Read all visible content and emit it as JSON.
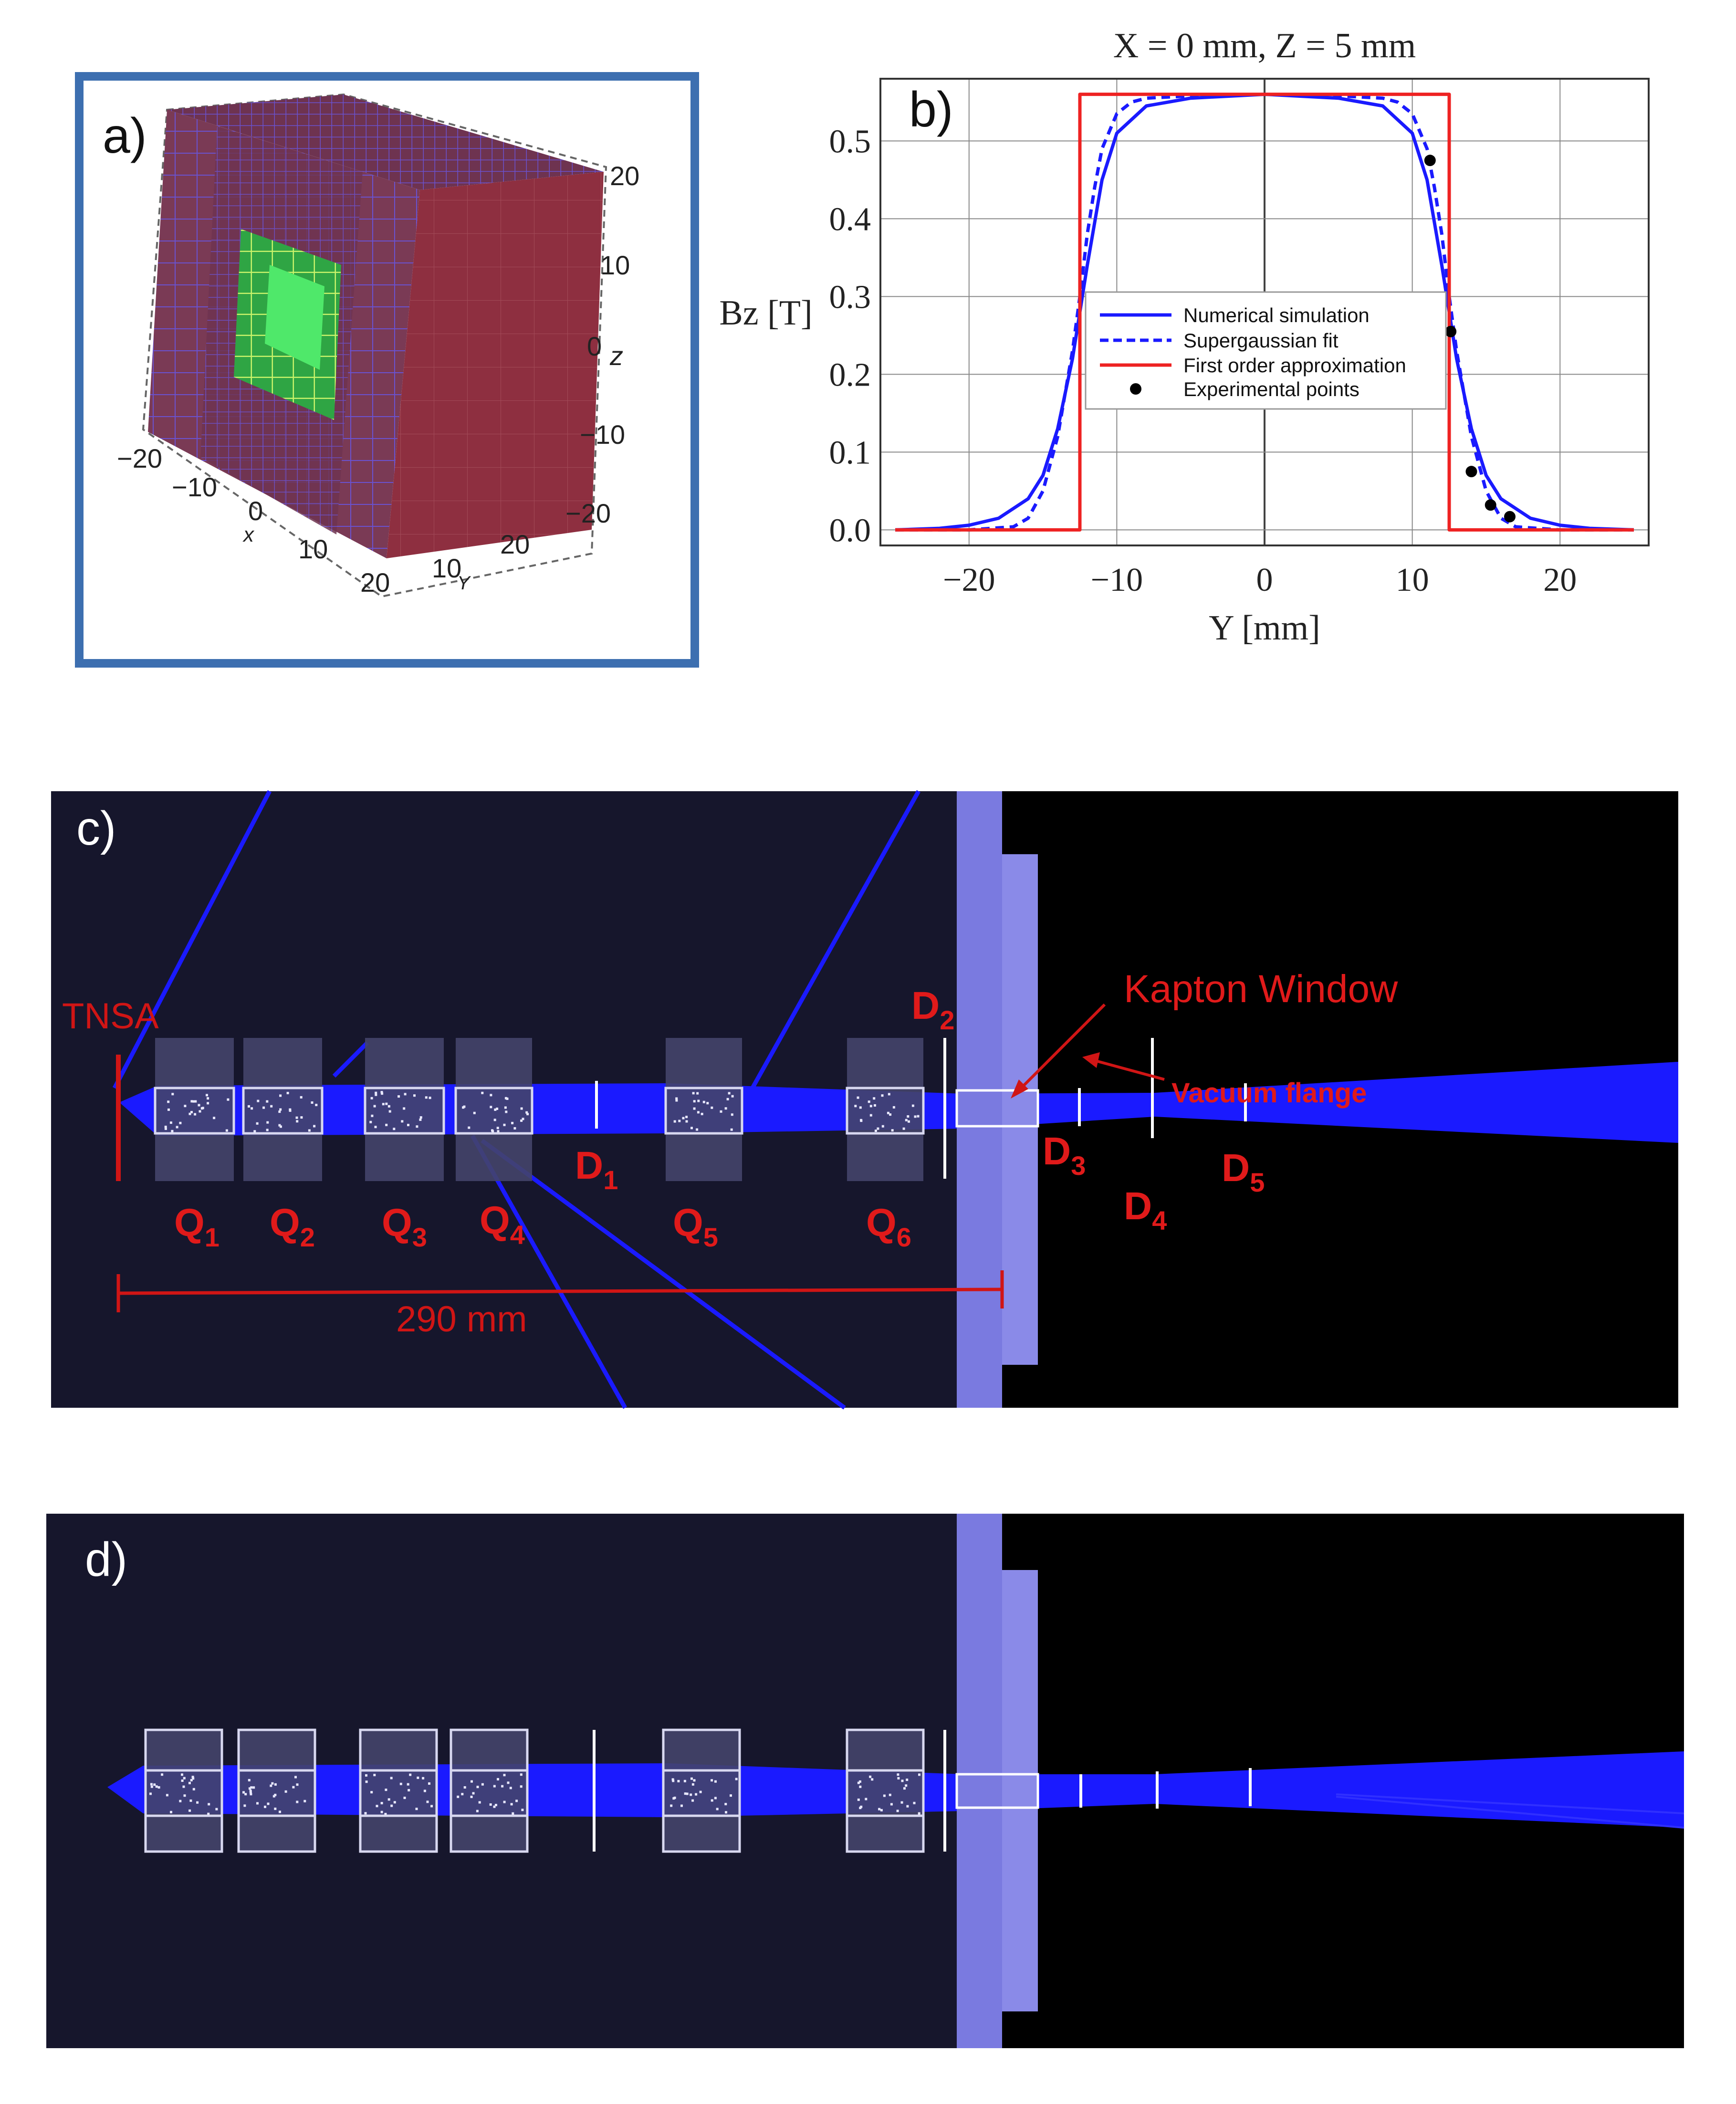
{
  "panel_a": {
    "label": "a)",
    "axes": {
      "z_ticks": [
        "20",
        "10",
        "0",
        "−10",
        "−20"
      ],
      "z_label": "z",
      "x_ticks": [
        "−20",
        "−10",
        "0",
        "10",
        "20"
      ],
      "x_label": "x",
      "y_ticks": [
        "10",
        "20"
      ],
      "y_label": "Y"
    },
    "colors": {
      "frame": "#3d6fb0",
      "magnet": "#7a3a52",
      "grid": "#6a4fc4",
      "core": "#33dd55"
    }
  },
  "panel_b": {
    "label": "b)",
    "chart_data": {
      "type": "line",
      "title": "X = 0 mm, Z = 5 mm",
      "xlabel": "Y [mm]",
      "ylabel": "Bz [T]",
      "xlim": [
        -26,
        26
      ],
      "ylim": [
        -0.02,
        0.58
      ],
      "x_ticks": [
        -20,
        -10,
        0,
        10,
        20
      ],
      "x_tick_labels": [
        "−20",
        "−10",
        "0",
        "10",
        "20"
      ],
      "y_ticks": [
        0.0,
        0.1,
        0.2,
        0.3,
        0.4,
        0.5
      ],
      "y_tick_labels": [
        "0.0",
        "0.1",
        "0.2",
        "0.3",
        "0.4",
        "0.5"
      ],
      "grid": true,
      "legend_position": "center",
      "series": [
        {
          "name": "Numerical simulation",
          "style": "solid",
          "color": "#1a1aff",
          "x": [
            -25,
            -22,
            -20,
            -18,
            -16,
            -15,
            -14,
            -13,
            -12.5,
            -12,
            -11,
            -10,
            -8,
            -5,
            0,
            5,
            8,
            10,
            11,
            12,
            12.5,
            13,
            14,
            15,
            16,
            18,
            20,
            22,
            25
          ],
          "y": [
            0.0,
            0.002,
            0.006,
            0.015,
            0.04,
            0.07,
            0.13,
            0.22,
            0.28,
            0.34,
            0.45,
            0.51,
            0.545,
            0.555,
            0.56,
            0.555,
            0.545,
            0.51,
            0.45,
            0.34,
            0.28,
            0.22,
            0.13,
            0.07,
            0.04,
            0.015,
            0.006,
            0.002,
            0.0
          ]
        },
        {
          "name": "Supergaussian fit",
          "style": "dashed",
          "color": "#1a1aff",
          "x": [
            -25,
            -20,
            -17,
            -16,
            -15,
            -14,
            -13,
            -12.5,
            -12,
            -11.5,
            -11,
            -10,
            -9,
            -8,
            -5,
            0,
            5,
            8,
            9,
            10,
            11,
            11.5,
            12,
            12.5,
            13,
            14,
            15,
            16,
            17,
            20,
            25
          ],
          "y": [
            0.0,
            0.0,
            0.004,
            0.015,
            0.05,
            0.12,
            0.23,
            0.3,
            0.38,
            0.44,
            0.49,
            0.535,
            0.55,
            0.555,
            0.558,
            0.56,
            0.558,
            0.555,
            0.55,
            0.535,
            0.49,
            0.44,
            0.38,
            0.3,
            0.23,
            0.12,
            0.05,
            0.015,
            0.004,
            0.0,
            0.0
          ]
        },
        {
          "name": "First order approximation",
          "style": "solid",
          "color": "#ee2222",
          "x": [
            -25,
            -12.5,
            -12.5,
            12.5,
            12.5,
            25
          ],
          "y": [
            0.0,
            0.0,
            0.56,
            0.56,
            0.0,
            0.0
          ]
        },
        {
          "name": "Experimental points",
          "style": "markers",
          "color": "#000000",
          "x": [
            11.2,
            12.6,
            14.0,
            15.3,
            16.6
          ],
          "y": [
            0.475,
            0.255,
            0.075,
            0.032,
            0.017
          ]
        }
      ]
    }
  },
  "panel_c": {
    "label": "c)",
    "labels": {
      "tnsa": "TNSA",
      "kapton": "Kapton Window",
      "vacuum": "Vacuum flange",
      "distance": "290 mm"
    },
    "quads": [
      {
        "letter": "Q",
        "sub": "1"
      },
      {
        "letter": "Q",
        "sub": "2"
      },
      {
        "letter": "Q",
        "sub": "3"
      },
      {
        "letter": "Q",
        "sub": "4"
      },
      {
        "letter": "Q",
        "sub": "5"
      },
      {
        "letter": "Q",
        "sub": "6"
      }
    ],
    "detectors": [
      {
        "letter": "D",
        "sub": "1"
      },
      {
        "letter": "D",
        "sub": "2"
      },
      {
        "letter": "D",
        "sub": "3"
      },
      {
        "letter": "D",
        "sub": "4"
      },
      {
        "letter": "D",
        "sub": "5"
      }
    ],
    "colors": {
      "background": "#16162c",
      "beam": "#1a1aff",
      "annotation": "#e01a1a",
      "flange": "#7a7ae0"
    }
  },
  "panel_d": {
    "label": "d)"
  }
}
